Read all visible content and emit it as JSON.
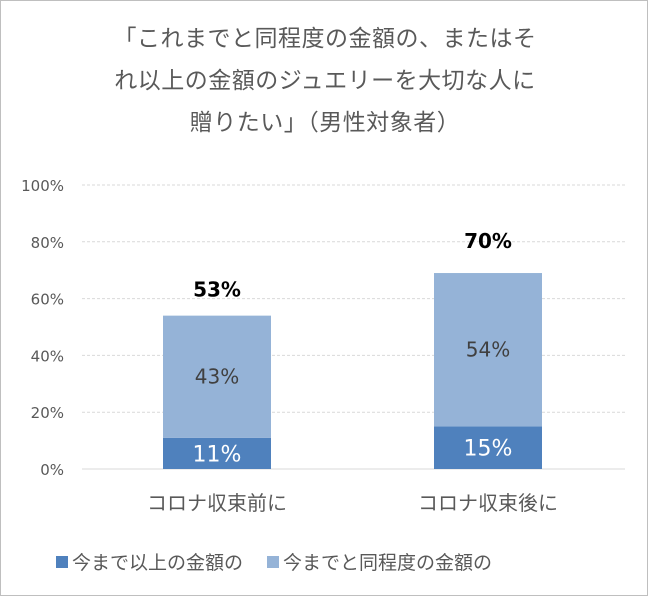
{
  "chart_data": {
    "type": "bar",
    "stacked": true,
    "title_lines": [
      "「これまでと同程度の金額の、またはそ",
      "れ以上の金額のジュエリーを大切な人に",
      "贈りたい」（男性対象者）"
    ],
    "categories": [
      "コロナ収束前に",
      "コロナ収束後に"
    ],
    "series": [
      {
        "name": "今まで以上の金額の",
        "values": [
          11,
          15
        ],
        "labels": [
          "11%",
          "15%"
        ],
        "color": "#4f81bd",
        "label_color": "#ffffff"
      },
      {
        "name": "今までと同程度の金額の",
        "values": [
          43,
          54
        ],
        "labels": [
          "43%",
          "54%"
        ],
        "color": "#95b3d7",
        "label_color": "#404040"
      }
    ],
    "totals": [
      53,
      70
    ],
    "total_labels": [
      "53%",
      "70%"
    ],
    "yticks": [
      "0%",
      "20%",
      "40%",
      "60%",
      "80%",
      "100%"
    ],
    "ylim": [
      0,
      100
    ],
    "grid": true,
    "legend": "bottom"
  }
}
